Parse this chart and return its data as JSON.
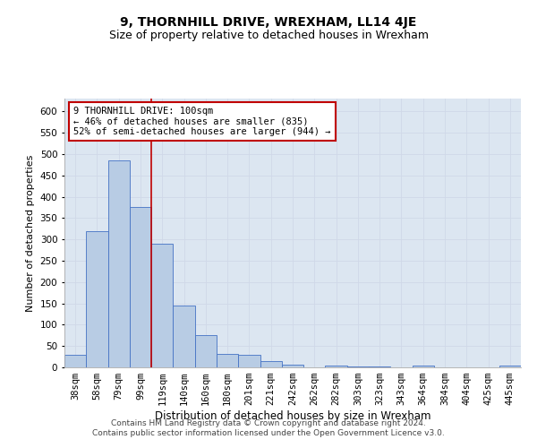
{
  "title": "9, THORNHILL DRIVE, WREXHAM, LL14 4JE",
  "subtitle": "Size of property relative to detached houses in Wrexham",
  "xlabel": "Distribution of detached houses by size in Wrexham",
  "ylabel": "Number of detached properties",
  "categories": [
    "38sqm",
    "58sqm",
    "79sqm",
    "99sqm",
    "119sqm",
    "140sqm",
    "160sqm",
    "180sqm",
    "201sqm",
    "221sqm",
    "242sqm",
    "262sqm",
    "282sqm",
    "303sqm",
    "323sqm",
    "343sqm",
    "364sqm",
    "384sqm",
    "404sqm",
    "425sqm",
    "445sqm"
  ],
  "values": [
    30,
    320,
    485,
    375,
    290,
    145,
    76,
    32,
    29,
    15,
    7,
    1,
    5,
    3,
    3,
    1,
    5,
    1,
    1,
    1,
    5
  ],
  "bar_color": "#b8cce4",
  "bar_edge_color": "#4472c4",
  "grid_color": "#d0d8e8",
  "background_color": "#dce6f1",
  "vline_x": 3.5,
  "vline_color": "#c00000",
  "annotation_line1": "9 THORNHILL DRIVE: 100sqm",
  "annotation_line2": "← 46% of detached houses are smaller (835)",
  "annotation_line3": "52% of semi-detached houses are larger (944) →",
  "annotation_box_color": "#ffffff",
  "annotation_box_edge": "#c00000",
  "ylim": [
    0,
    630
  ],
  "yticks": [
    0,
    50,
    100,
    150,
    200,
    250,
    300,
    350,
    400,
    450,
    500,
    550,
    600
  ],
  "footer": "Contains HM Land Registry data © Crown copyright and database right 2024.\nContains public sector information licensed under the Open Government Licence v3.0.",
  "title_fontsize": 10,
  "subtitle_fontsize": 9,
  "xlabel_fontsize": 8.5,
  "ylabel_fontsize": 8,
  "tick_fontsize": 7.5,
  "annotation_fontsize": 7.5,
  "footer_fontsize": 6.5
}
